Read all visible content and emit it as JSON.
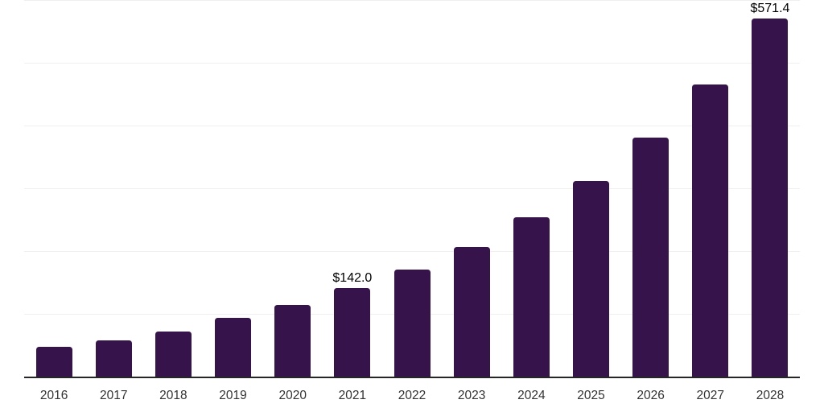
{
  "chart": {
    "background": "#ffffff",
    "bar_color": "#37134c",
    "gridline_color": "#efefef",
    "axis_line_color": "#262626",
    "x_label_color": "#333333",
    "data_label_color": "#000000"
  },
  "chart_data": {
    "type": "bar",
    "categories": [
      "2016",
      "2017",
      "2018",
      "2019",
      "2020",
      "2021",
      "2022",
      "2023",
      "2024",
      "2025",
      "2026",
      "2027",
      "2028"
    ],
    "values": [
      48.7,
      59.0,
      73.5,
      95.0,
      115.2,
      142.0,
      171.5,
      208.0,
      255.0,
      313.0,
      382.0,
      467.0,
      571.4
    ],
    "data_labels": {
      "2021": "$142.0",
      "2028": "$571.4"
    },
    "title": "",
    "xlabel": "",
    "ylabel": "",
    "ylim": [
      0,
      600
    ],
    "grid_values": [
      100,
      200,
      300,
      400,
      500,
      600
    ],
    "grid": "horizontal-only",
    "legend": "none",
    "y_axis_tick_labels": "hidden"
  }
}
